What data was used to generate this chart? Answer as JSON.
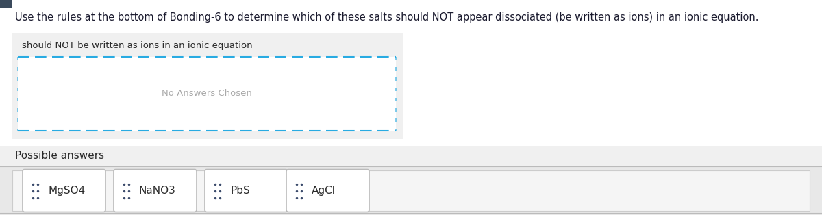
{
  "title": "Use the rules at the bottom of Bonding-6 to determine which of these salts should NOT appear dissociated (be written as ions) in an ionic equation.",
  "drop_zone_label": "should NOT be written as ions in an ionic equation",
  "drop_zone_placeholder": "No Answers Chosen",
  "section_label": "Possible answers",
  "answer_items": [
    "MgSO4",
    "NaNO3",
    "PbS",
    "AgCl"
  ],
  "white": "#ffffff",
  "title_color": "#1a1a2e",
  "drop_zone_border_color": "#29abe2",
  "drop_zone_bg": "#ffffff",
  "drop_zone_section_bg": "#f0f0f0",
  "card_border_color": "#bbbbbb",
  "card_bg": "#ffffff",
  "label_color": "#2a2a2a",
  "placeholder_color": "#aaaaaa",
  "dot_color": "#3a4a6b",
  "possible_section_bg": "#f0f0f0",
  "cards_row_bg": "#e8e8e8",
  "cards_inner_bg": "#f5f5f5",
  "title_fontsize": 10.5,
  "label_fontsize": 9.5,
  "placeholder_fontsize": 9.5,
  "card_fontsize": 11
}
